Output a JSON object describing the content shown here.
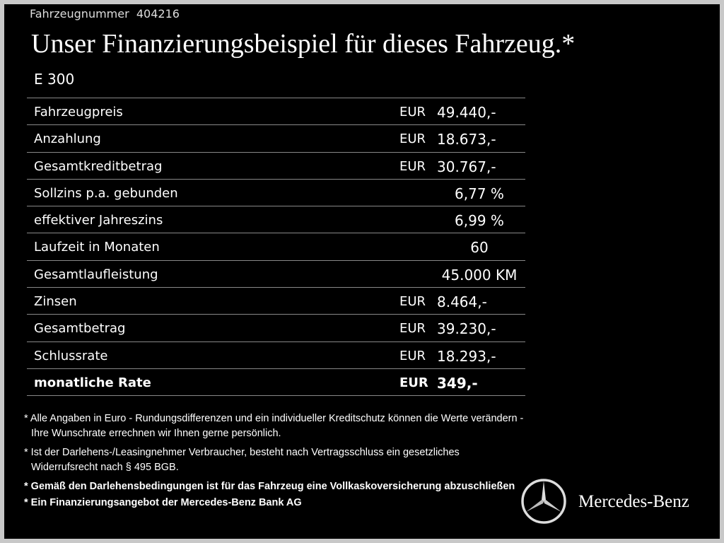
{
  "vehicle_number": {
    "label": "Fahrzeugnummer",
    "value": "404216"
  },
  "title": "Unser Finanzierungsbeispiel für dieses Fahrzeug.*",
  "model": "E 300",
  "table": {
    "rows": [
      {
        "label": "Fahrzeugpreis",
        "currency": "EUR",
        "amount": "49.440,-"
      },
      {
        "label": "Anzahlung",
        "currency": "EUR",
        "amount": "18.673,-"
      },
      {
        "label": "Gesamtkreditbetrag",
        "currency": "EUR",
        "amount": "30.767,-"
      },
      {
        "label": "Sollzins p.a. gebunden",
        "amount": "6,77 %"
      },
      {
        "label": "effektiver Jahreszins",
        "amount": "6,99 %"
      },
      {
        "label": "Laufzeit in Monaten",
        "amount": "60"
      },
      {
        "label": "Gesamtlaufleistung",
        "amount": "45.000 KM"
      },
      {
        "label": "Zinsen",
        "currency": "EUR",
        "amount": "8.464,-"
      },
      {
        "label": "Gesamtbetrag",
        "currency": "EUR",
        "amount": "39.230,-"
      },
      {
        "label": "Schlussrate",
        "currency": "EUR",
        "amount": "18.293,-"
      },
      {
        "label": "monatliche Rate",
        "currency": "EUR",
        "amount": "349,-",
        "bold": true
      }
    ]
  },
  "footnotes": [
    {
      "text": "* Alle Angaben in Euro - Rundungsdifferenzen und ein individueller Kreditschutz können die Werte verändern - Ihre Wunschrate errechnen wir Ihnen gerne persönlich."
    },
    {
      "text": "* Ist der Darlehens-/Leasingnehmer Verbraucher, besteht nach Vertragsschluss ein gesetzliches Widerrufsrecht nach § 495 BGB."
    },
    {
      "text": "* Gemäß den Darlehensbedingungen ist für das Fahrzeug eine Vollkaskoversicherung abzuschließen",
      "bold": true
    },
    {
      "text": "* Ein Finanzierungsangebot der Mercedes-Benz Bank AG",
      "bold": true
    }
  ],
  "brand": "Mercedes-Benz"
}
